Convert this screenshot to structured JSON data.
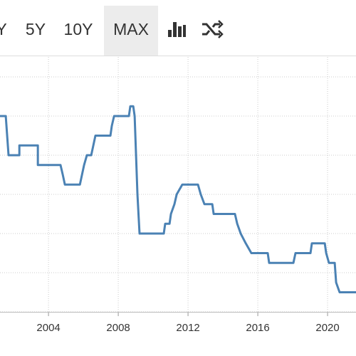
{
  "toolbar": {
    "buttons": [
      "Y",
      "5Y",
      "10Y",
      "MAX"
    ],
    "active": 3
  },
  "chart_data": {
    "type": "line",
    "x": [
      2001.22,
      2001.55,
      2001.71,
      2002.33,
      2002.33,
      2003.39,
      2003.39,
      2004.69,
      2004.82,
      2004.94,
      2005.8,
      2005.92,
      2006.04,
      2006.2,
      2006.45,
      2006.57,
      2006.69,
      2007.55,
      2007.63,
      2007.76,
      2008.61,
      2008.69,
      2008.86,
      2008.94,
      2009.1,
      2009.22,
      2010.61,
      2010.69,
      2010.94,
      2011.02,
      2011.22,
      2011.35,
      2011.67,
      2012.57,
      2012.73,
      2012.94,
      2013.39,
      2013.47,
      2014.69,
      2014.82,
      2015.02,
      2015.31,
      2015.63,
      2016.57,
      2016.65,
      2018.04,
      2018.16,
      2019.02,
      2019.1,
      2019.84,
      2019.92,
      2020.08,
      2020.41,
      2020.49,
      2020.69,
      2021.63
    ],
    "series": [
      {
        "color": "#4b82b4",
        "values": [
          5,
          5,
          4,
          4,
          4.25,
          4.25,
          3.75,
          3.75,
          3.5,
          3.25,
          3.25,
          3.5,
          3.75,
          4,
          4,
          4.25,
          4.5,
          4.5,
          4.75,
          5,
          5,
          5.25,
          5.25,
          5,
          3,
          2,
          2,
          2.25,
          2.25,
          2.5,
          2.75,
          3,
          3.25,
          3.25,
          3,
          2.75,
          2.75,
          2.5,
          2.5,
          2.25,
          2,
          1.75,
          1.5,
          1.5,
          1.25,
          1.25,
          1.5,
          1.5,
          1.75,
          1.75,
          1.5,
          1.25,
          1.25,
          0.75,
          0.5,
          0.5
        ]
      }
    ],
    "xlim": [
      2001.22,
      2021.63
    ],
    "xticks": [
      2004,
      2008,
      2012,
      2016,
      2020
    ],
    "ylim": [
      0,
      6.51
    ],
    "ygrid": [
      0,
      1,
      2,
      3,
      4,
      5,
      6
    ],
    "grid": true
  }
}
